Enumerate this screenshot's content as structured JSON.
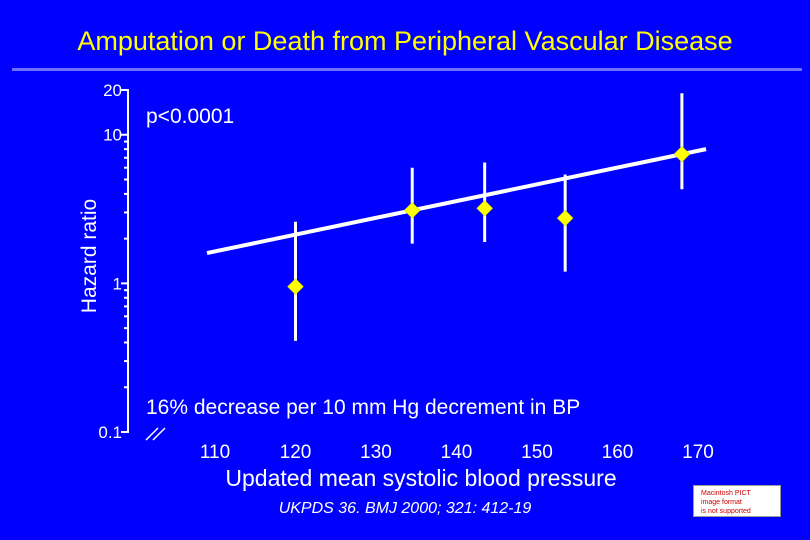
{
  "title": "Amputation or Death from Peripheral Vascular Disease",
  "citation": "UKPDS 36. BMJ 2000; 321: 412-19",
  "placeholder_note": [
    "Macintosh PICT",
    "image format",
    "is not supported"
  ],
  "colors": {
    "background": "#0000FF",
    "title": "#FFFF00",
    "marker": "#FFFF00",
    "line": "#FFFFFF"
  },
  "chart_data": {
    "type": "scatter",
    "title": "",
    "xlabel": "Updated mean systolic blood pressure",
    "ylabel": "Hazard ratio",
    "yscale": "log",
    "ylim": [
      0.1,
      20
    ],
    "xlim": [
      100,
      170
    ],
    "x_ticks": [
      110,
      120,
      130,
      140,
      150,
      160,
      170
    ],
    "y_ticks": [
      0.1,
      1,
      10,
      20
    ],
    "x_axis_break": true,
    "grid": false,
    "annotations": [
      "p<0.0001",
      "16% decrease per 10 mm Hg decrement in BP"
    ],
    "points": [
      {
        "x": 120,
        "y": 0.95,
        "ci": [
          0.41,
          2.6
        ]
      },
      {
        "x": 134.5,
        "y": 3.1,
        "ci": [
          1.85,
          6.0
        ]
      },
      {
        "x": 143.5,
        "y": 3.2,
        "ci": [
          1.9,
          6.5
        ]
      },
      {
        "x": 153.5,
        "y": 2.75,
        "ci": [
          1.2,
          5.4
        ]
      },
      {
        "x": 168,
        "y": 7.4,
        "ci": [
          4.3,
          19
        ]
      }
    ],
    "trend_line": {
      "x": [
        109,
        171
      ],
      "y": [
        1.6,
        8.0
      ]
    }
  }
}
